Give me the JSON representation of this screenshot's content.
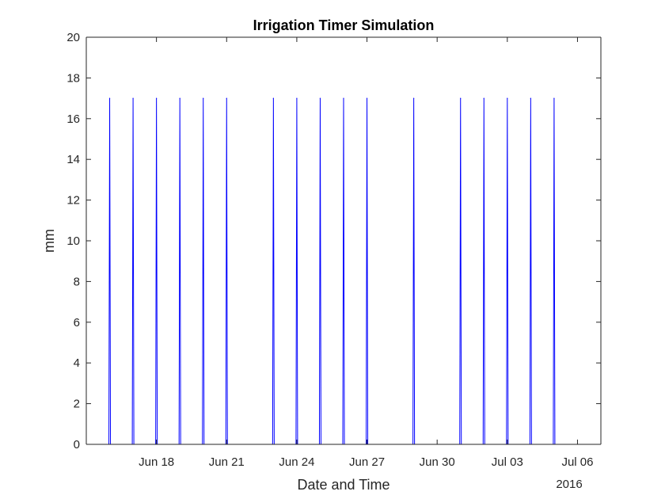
{
  "chart_data": {
    "type": "line",
    "title": "Irrigation Timer Simulation",
    "xlabel": "Date and Time",
    "ylabel": "mm",
    "year_label": "2016",
    "x_range": [
      "2016-06-15",
      "2016-07-07"
    ],
    "ylim": [
      0,
      20
    ],
    "y_ticks": [
      0,
      2,
      4,
      6,
      8,
      10,
      12,
      14,
      16,
      18,
      20
    ],
    "x_ticks": [
      {
        "date": "2016-06-18",
        "label": "Jun 18"
      },
      {
        "date": "2016-06-21",
        "label": "Jun 21"
      },
      {
        "date": "2016-06-24",
        "label": "Jun 24"
      },
      {
        "date": "2016-06-27",
        "label": "Jun 27"
      },
      {
        "date": "2016-06-30",
        "label": "Jun 30"
      },
      {
        "date": "2016-07-03",
        "label": "Jul 03"
      },
      {
        "date": "2016-07-06",
        "label": "Jul 06"
      }
    ],
    "grid": false,
    "series": [
      {
        "color": "#0000ff",
        "event_value": 17,
        "baseline": 0,
        "events": [
          "2016-06-16",
          "2016-06-17",
          "2016-06-18",
          "2016-06-19",
          "2016-06-20",
          "2016-06-21",
          "2016-06-23",
          "2016-06-24",
          "2016-06-25",
          "2016-06-26",
          "2016-06-27",
          "2016-06-29",
          "2016-07-01",
          "2016-07-02",
          "2016-07-03",
          "2016-07-04",
          "2016-07-05"
        ]
      }
    ]
  }
}
